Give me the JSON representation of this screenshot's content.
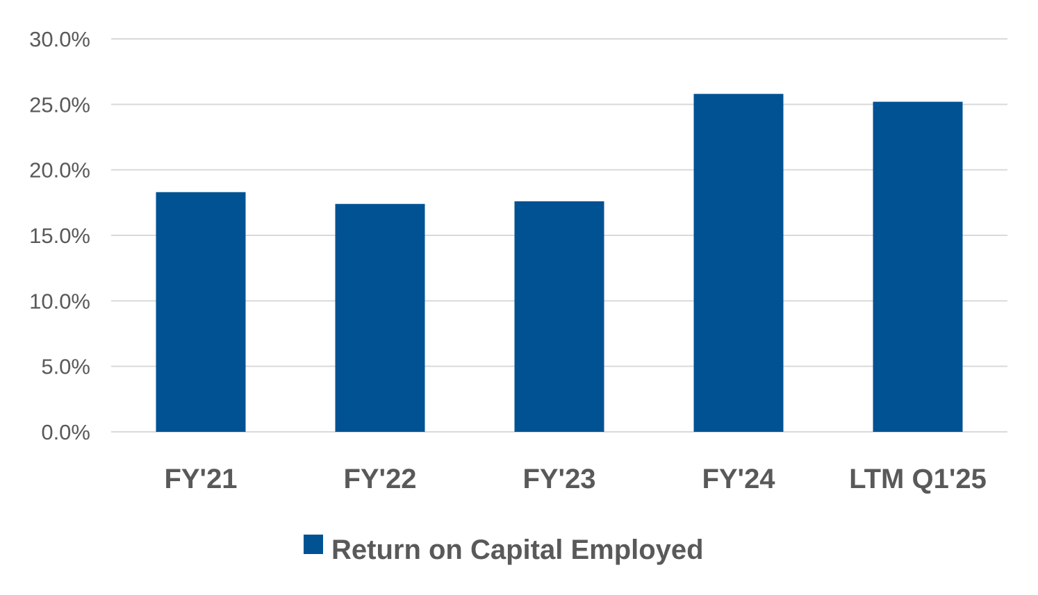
{
  "chart_data": {
    "type": "bar",
    "categories": [
      "FY'21",
      "FY'22",
      "FY'23",
      "FY'24",
      "LTM Q1'25"
    ],
    "series": [
      {
        "name": "Return on Capital Employed",
        "values": [
          18.3,
          17.4,
          17.6,
          25.8,
          25.2
        ],
        "color": "#005293"
      }
    ],
    "y_ticks": [
      "0.0%",
      "5.0%",
      "10.0%",
      "15.0%",
      "20.0%",
      "25.0%",
      "30.0%"
    ],
    "ylim": [
      0,
      30
    ],
    "y_step": 5,
    "grid": true,
    "legend_position": "bottom-center",
    "title": "",
    "xlabel": "",
    "ylabel": ""
  }
}
